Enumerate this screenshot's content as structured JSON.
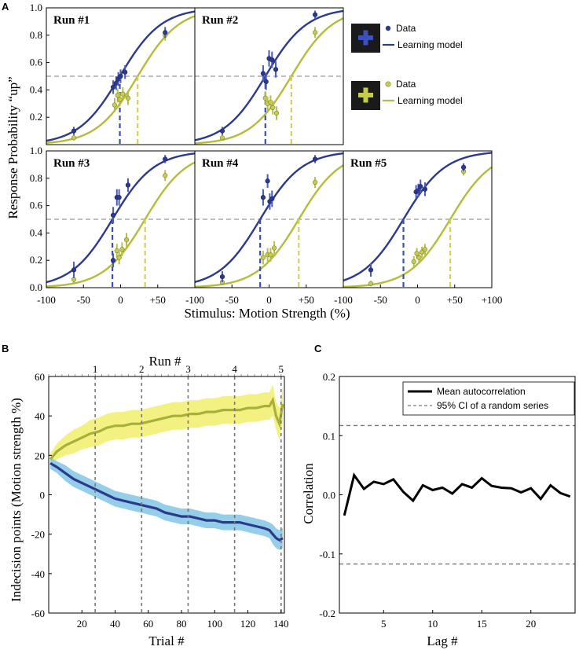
{
  "figure": {
    "panel_letters": [
      "A",
      "B",
      "C"
    ],
    "colors": {
      "blue": "#2b3a8c",
      "yellow": "#b5bc3a",
      "yellow_light": "#c5cc55",
      "yellow_band": "#f2f07a",
      "blue_band": "#8fcbe8",
      "gray_dash": "#aaaaaa",
      "legend_box": "#1a1a1a"
    },
    "legend_a": [
      {
        "icon": "blue-plus-icon",
        "data_label": "Data",
        "model_label": "Learning model"
      },
      {
        "icon": "yellow-plus-icon",
        "data_label": "Data",
        "model_label": "Learning model"
      }
    ]
  },
  "chart_data": [
    {
      "id": "A",
      "type": "scatter",
      "title": "",
      "xlabel": "Stimulus: Motion Strength (%)",
      "ylabel": "Response Probability “up”",
      "xlim": [
        -100,
        100
      ],
      "ylim": [
        0,
        1
      ],
      "grid": false,
      "x_tick_labels": [
        "-100",
        "-50",
        "0",
        "+50",
        "+100"
      ],
      "x_tick_values": [
        -100,
        -50,
        0,
        50,
        100
      ],
      "y_tick_labels": [
        "0.0",
        "0.2",
        "0.4",
        "0.6",
        "0.8",
        "1.0"
      ],
      "y_tick_values": [
        0,
        0.2,
        0.4,
        0.6,
        0.8,
        1.0
      ],
      "reference_line_y": 0.5,
      "legend": [
        "Data",
        "Learning model"
      ],
      "panels": [
        {
          "title": "Run #1",
          "blue": {
            "threshold": -1,
            "slope": 28,
            "points": [
              {
                "x": -63,
                "y": 0.1,
                "e": 0.03
              },
              {
                "x": -10,
                "y": 0.42,
                "e": 0.05
              },
              {
                "x": -6,
                "y": 0.45,
                "e": 0.05
              },
              {
                "x": -3,
                "y": 0.48,
                "e": 0.05
              },
              {
                "x": 0,
                "y": 0.5,
                "e": 0.05
              },
              {
                "x": 6,
                "y": 0.53,
                "e": 0.05
              },
              {
                "x": 60,
                "y": 0.82,
                "e": 0.04
              }
            ]
          },
          "yellow": {
            "threshold": 23,
            "slope": 28,
            "points": [
              {
                "x": -63,
                "y": 0.05,
                "e": 0.02
              },
              {
                "x": -8,
                "y": 0.29,
                "e": 0.05
              },
              {
                "x": -4,
                "y": 0.36,
                "e": 0.05
              },
              {
                "x": -1,
                "y": 0.33,
                "e": 0.05
              },
              {
                "x": 3,
                "y": 0.37,
                "e": 0.05
              },
              {
                "x": 10,
                "y": 0.34,
                "e": 0.05
              },
              {
                "x": 60,
                "y": 0.8,
                "e": 0.04
              }
            ]
          }
        },
        {
          "title": "Run #2",
          "blue": {
            "threshold": -5,
            "slope": 28,
            "points": [
              {
                "x": -63,
                "y": 0.1,
                "e": 0.03
              },
              {
                "x": -8,
                "y": 0.52,
                "e": 0.06
              },
              {
                "x": -4,
                "y": 0.46,
                "e": 0.06
              },
              {
                "x": 0,
                "y": 0.63,
                "e": 0.06
              },
              {
                "x": 4,
                "y": 0.62,
                "e": 0.06
              },
              {
                "x": 9,
                "y": 0.55,
                "e": 0.06
              },
              {
                "x": 62,
                "y": 0.95,
                "e": 0.03
              }
            ]
          },
          "yellow": {
            "threshold": 30,
            "slope": 28,
            "points": [
              {
                "x": -63,
                "y": 0.05,
                "e": 0.02
              },
              {
                "x": -5,
                "y": 0.34,
                "e": 0.05
              },
              {
                "x": -2,
                "y": 0.3,
                "e": 0.05
              },
              {
                "x": 2,
                "y": 0.31,
                "e": 0.05
              },
              {
                "x": 5,
                "y": 0.27,
                "e": 0.05
              },
              {
                "x": 10,
                "y": 0.23,
                "e": 0.05
              },
              {
                "x": 62,
                "y": 0.82,
                "e": 0.04
              }
            ]
          }
        },
        {
          "title": "Run #3",
          "blue": {
            "threshold": -11,
            "slope": 28,
            "points": [
              {
                "x": -63,
                "y": 0.13,
                "e": 0.06
              },
              {
                "x": -10,
                "y": 0.53,
                "e": 0.06
              },
              {
                "x": -5,
                "y": 0.66,
                "e": 0.06
              },
              {
                "x": -2,
                "y": 0.66,
                "e": 0.06
              },
              {
                "x": 10,
                "y": 0.75,
                "e": 0.05
              },
              {
                "x": -10,
                "y": 0.2,
                "e": 0.05
              },
              {
                "x": 60,
                "y": 0.94,
                "e": 0.03
              }
            ]
          },
          "yellow": {
            "threshold": 33,
            "slope": 28,
            "points": [
              {
                "x": -63,
                "y": 0.06,
                "e": 0.03
              },
              {
                "x": -5,
                "y": 0.27,
                "e": 0.05
              },
              {
                "x": -2,
                "y": 0.22,
                "e": 0.05
              },
              {
                "x": 2,
                "y": 0.28,
                "e": 0.05
              },
              {
                "x": 8,
                "y": 0.35,
                "e": 0.05
              },
              {
                "x": 60,
                "y": 0.82,
                "e": 0.04
              }
            ]
          }
        },
        {
          "title": "Run #4",
          "blue": {
            "threshold": -12,
            "slope": 28,
            "points": [
              {
                "x": -63,
                "y": 0.08,
                "e": 0.04
              },
              {
                "x": -8,
                "y": 0.66,
                "e": 0.06
              },
              {
                "x": -2,
                "y": 0.78,
                "e": 0.05
              },
              {
                "x": 1,
                "y": 0.63,
                "e": 0.06
              },
              {
                "x": 4,
                "y": 0.65,
                "e": 0.06
              },
              {
                "x": 62,
                "y": 0.94,
                "e": 0.03
              }
            ]
          },
          "yellow": {
            "threshold": 40,
            "slope": 28,
            "points": [
              {
                "x": -63,
                "y": 0.04,
                "e": 0.02
              },
              {
                "x": -8,
                "y": 0.22,
                "e": 0.05
              },
              {
                "x": -2,
                "y": 0.24,
                "e": 0.05
              },
              {
                "x": 2,
                "y": 0.24,
                "e": 0.05
              },
              {
                "x": 7,
                "y": 0.29,
                "e": 0.05
              },
              {
                "x": 62,
                "y": 0.77,
                "e": 0.04
              }
            ]
          }
        },
        {
          "title": "Run #5",
          "blue": {
            "threshold": -19,
            "slope": 28,
            "points": [
              {
                "x": -63,
                "y": 0.13,
                "e": 0.05
              },
              {
                "x": -2,
                "y": 0.7,
                "e": 0.05
              },
              {
                "x": 1,
                "y": 0.71,
                "e": 0.05
              },
              {
                "x": 4,
                "y": 0.74,
                "e": 0.05
              },
              {
                "x": 10,
                "y": 0.72,
                "e": 0.05
              },
              {
                "x": 62,
                "y": 0.88,
                "e": 0.03
              }
            ]
          },
          "yellow": {
            "threshold": 44,
            "slope": 28,
            "points": [
              {
                "x": -63,
                "y": 0.03,
                "e": 0.02
              },
              {
                "x": -5,
                "y": 0.19,
                "e": 0.04
              },
              {
                "x": -1,
                "y": 0.25,
                "e": 0.04
              },
              {
                "x": 2,
                "y": 0.22,
                "e": 0.04
              },
              {
                "x": 6,
                "y": 0.26,
                "e": 0.04
              },
              {
                "x": 10,
                "y": 0.28,
                "e": 0.04
              },
              {
                "x": 62,
                "y": 0.85,
                "e": 0.03
              }
            ]
          }
        }
      ]
    },
    {
      "id": "B",
      "type": "line",
      "title": "Run #",
      "xlabel": "Trial #",
      "ylabel": "Indecision points (Motion strength %)",
      "xlim": [
        0,
        142
      ],
      "ylim": [
        -60,
        60
      ],
      "grid": false,
      "x_tick_labels": [
        "20",
        "40",
        "60",
        "80",
        "100",
        "120",
        "140"
      ],
      "x_tick_values": [
        20,
        40,
        60,
        80,
        100,
        120,
        140
      ],
      "y_tick_labels": [
        "-60",
        "-40",
        "-20",
        "0",
        "20",
        "40",
        "60"
      ],
      "y_tick_values": [
        -60,
        -40,
        -20,
        0,
        20,
        40,
        60
      ],
      "run_labels": [
        "1",
        "2",
        "3",
        "4",
        "5"
      ],
      "run_boundaries": [
        28,
        56,
        84,
        112,
        140
      ],
      "series": [
        {
          "name": "yellow",
          "x": [
            1,
            5,
            10,
            15,
            20,
            25,
            30,
            35,
            40,
            45,
            50,
            55,
            60,
            65,
            70,
            75,
            80,
            85,
            90,
            95,
            100,
            105,
            110,
            115,
            120,
            125,
            130,
            133,
            135,
            137,
            139,
            141
          ],
          "y": [
            18,
            22,
            25,
            27,
            29,
            31,
            32,
            34,
            35,
            35,
            36,
            36,
            37,
            38,
            39,
            40,
            40,
            41,
            41,
            42,
            42,
            43,
            43,
            43,
            44,
            44,
            45,
            45,
            48,
            40,
            36,
            46
          ],
          "band": [
            3,
            4,
            5,
            6,
            6,
            7,
            7,
            7,
            7,
            7,
            7,
            7,
            7,
            7,
            7,
            7,
            7,
            7,
            7,
            7,
            7,
            7,
            7,
            7,
            7,
            7,
            7,
            7,
            8,
            7,
            8,
            9
          ]
        },
        {
          "name": "blue",
          "x": [
            1,
            5,
            10,
            15,
            20,
            25,
            30,
            35,
            40,
            45,
            50,
            55,
            60,
            65,
            70,
            75,
            80,
            85,
            90,
            95,
            100,
            105,
            110,
            115,
            120,
            125,
            130,
            133,
            135,
            137,
            139,
            141
          ],
          "y": [
            16,
            14,
            11,
            8,
            6,
            4,
            2,
            0,
            -2,
            -3,
            -4,
            -5,
            -6,
            -7,
            -9,
            -10,
            -11,
            -11,
            -12,
            -13,
            -13,
            -14,
            -14,
            -14,
            -15,
            -16,
            -17,
            -18,
            -20,
            -22,
            -23,
            -22
          ],
          "band": [
            3,
            3,
            4,
            4,
            4,
            4,
            4,
            4,
            4,
            4,
            4,
            4,
            4,
            4,
            4,
            4,
            4,
            4,
            4,
            4,
            4,
            4,
            4,
            4,
            4,
            4,
            4,
            4,
            5,
            5,
            5,
            5
          ]
        }
      ]
    },
    {
      "id": "C",
      "type": "line",
      "title": "",
      "xlabel": "Lag #",
      "ylabel": "Correlation",
      "xlim": [
        0.5,
        24.5
      ],
      "ylim": [
        -0.2,
        0.2
      ],
      "grid": false,
      "x_tick_labels": [
        "5",
        "10",
        "15",
        "20"
      ],
      "x_tick_values": [
        5,
        10,
        15,
        20
      ],
      "y_tick_labels": [
        "-0.2",
        "-0.1",
        "0.0",
        "0.1",
        "0.2"
      ],
      "y_tick_values": [
        -0.2,
        -0.1,
        0.0,
        0.1,
        0.2
      ],
      "legend": [
        "Mean autocorrelation",
        "95% CI of a random series"
      ],
      "ci": [
        0.117,
        -0.117
      ],
      "series": [
        {
          "name": "Mean autocorrelation",
          "x": [
            1,
            2,
            3,
            4,
            5,
            6,
            7,
            8,
            9,
            10,
            11,
            12,
            13,
            14,
            15,
            16,
            17,
            18,
            19,
            20,
            21,
            22,
            23,
            24
          ],
          "y": [
            -0.035,
            0.033,
            0.01,
            0.022,
            0.018,
            0.026,
            0.005,
            -0.01,
            0.016,
            0.008,
            0.012,
            0.002,
            0.018,
            0.012,
            0.028,
            0.015,
            0.012,
            0.011,
            0.004,
            0.011,
            -0.007,
            0.016,
            0.003,
            -0.003
          ]
        }
      ]
    }
  ]
}
